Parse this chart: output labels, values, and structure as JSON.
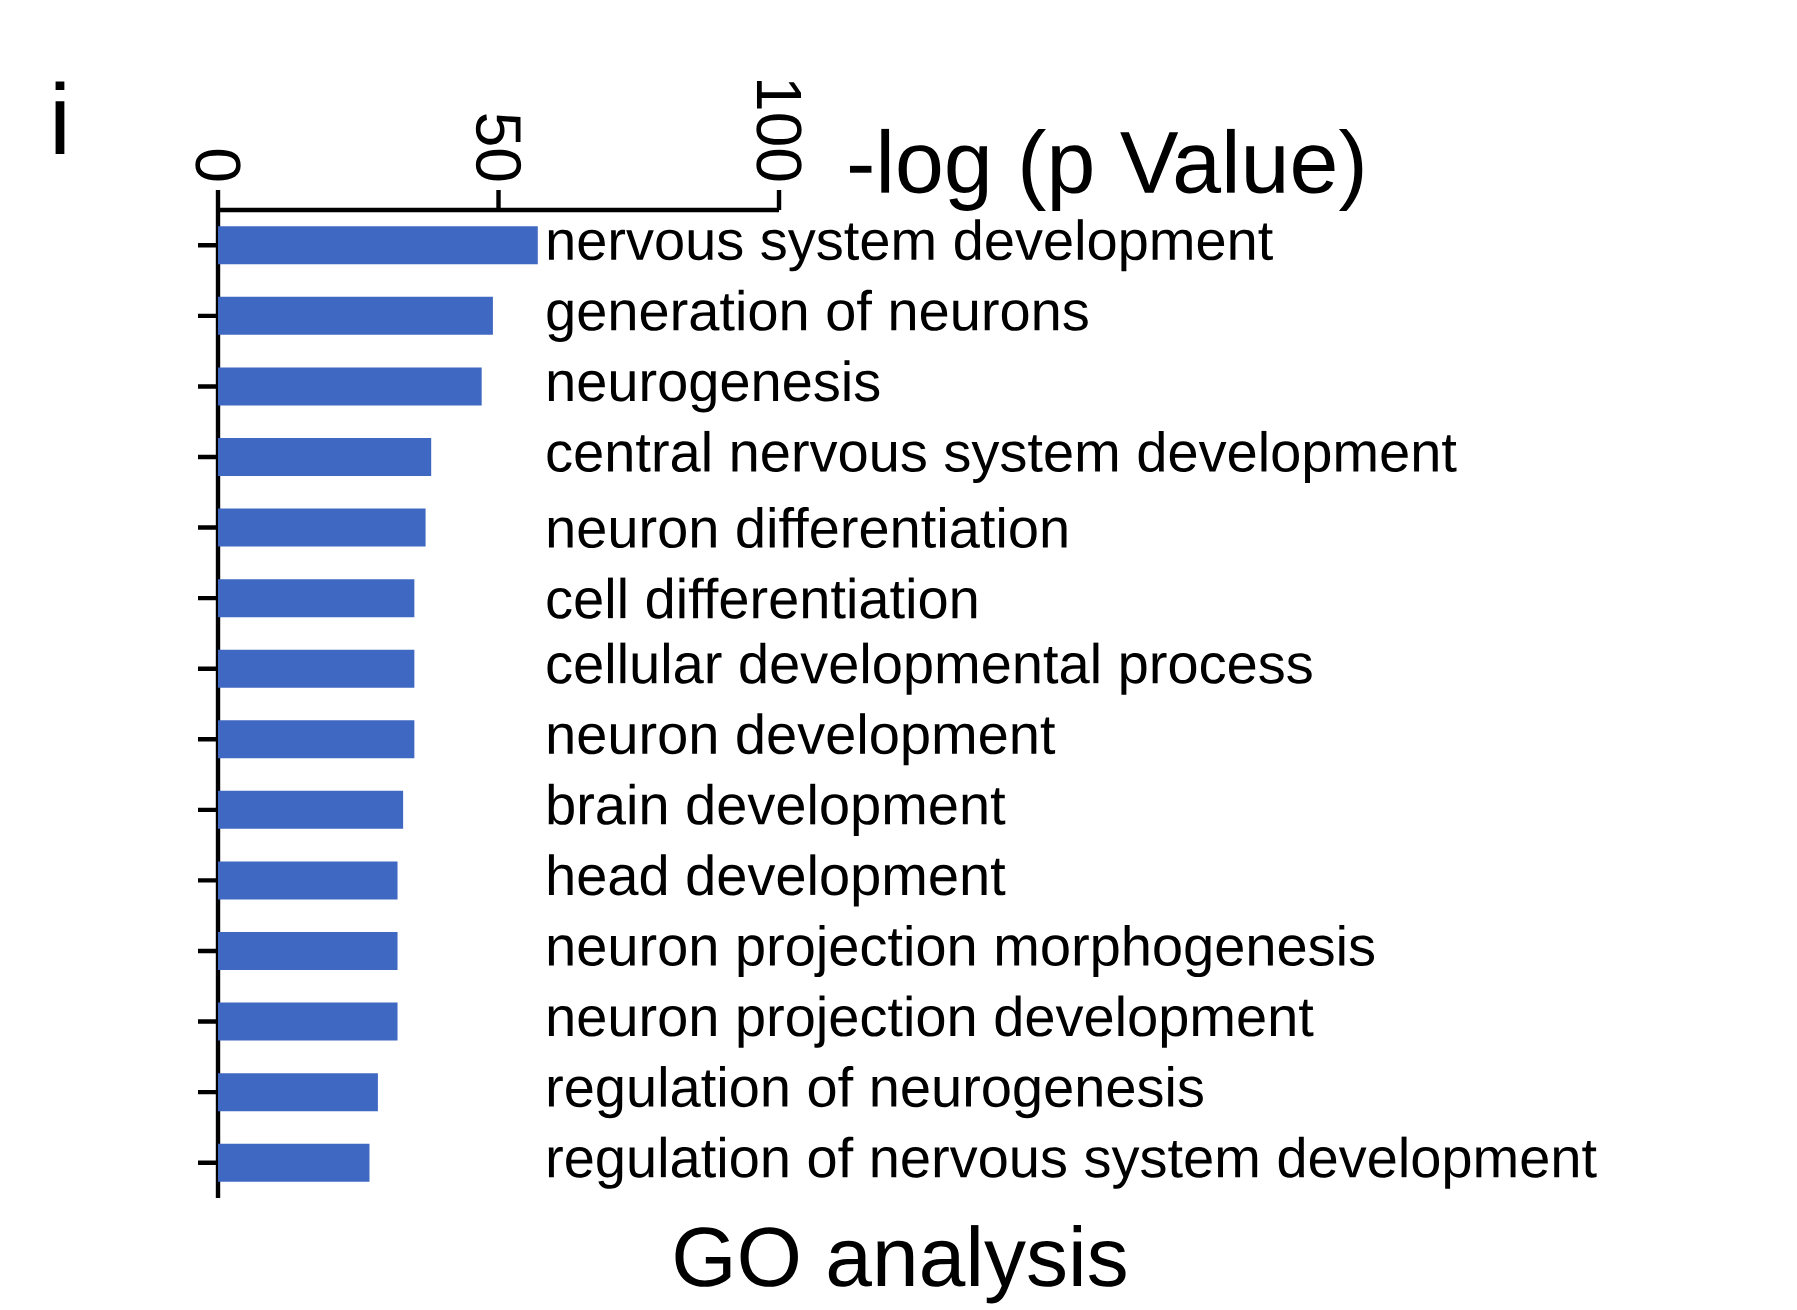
{
  "chart_data": {
    "type": "bar",
    "orientation": "horizontal",
    "title": "GO analysis",
    "xlabel": "-log (p Value)",
    "annotations": [
      "i"
    ],
    "categories": [
      "nervous system development",
      "generation of neurons",
      "neurogenesis",
      "central nervous system development",
      "neuron differentiation",
      "cell differentiation",
      "cellular developmental process",
      "neuron development",
      "brain development",
      "head development",
      "neuron projection morphogenesis",
      "neuron projection development",
      "regulation of neurogenesis",
      "regulation of nervous system development"
    ],
    "values": [
      57,
      49,
      47,
      38,
      37,
      35,
      35,
      35,
      33,
      32,
      32,
      32,
      28.5,
      27
    ],
    "color": "#3f68c2",
    "xlim": [
      0,
      100
    ],
    "xticks": [
      0,
      50,
      100
    ],
    "grid": false
  }
}
